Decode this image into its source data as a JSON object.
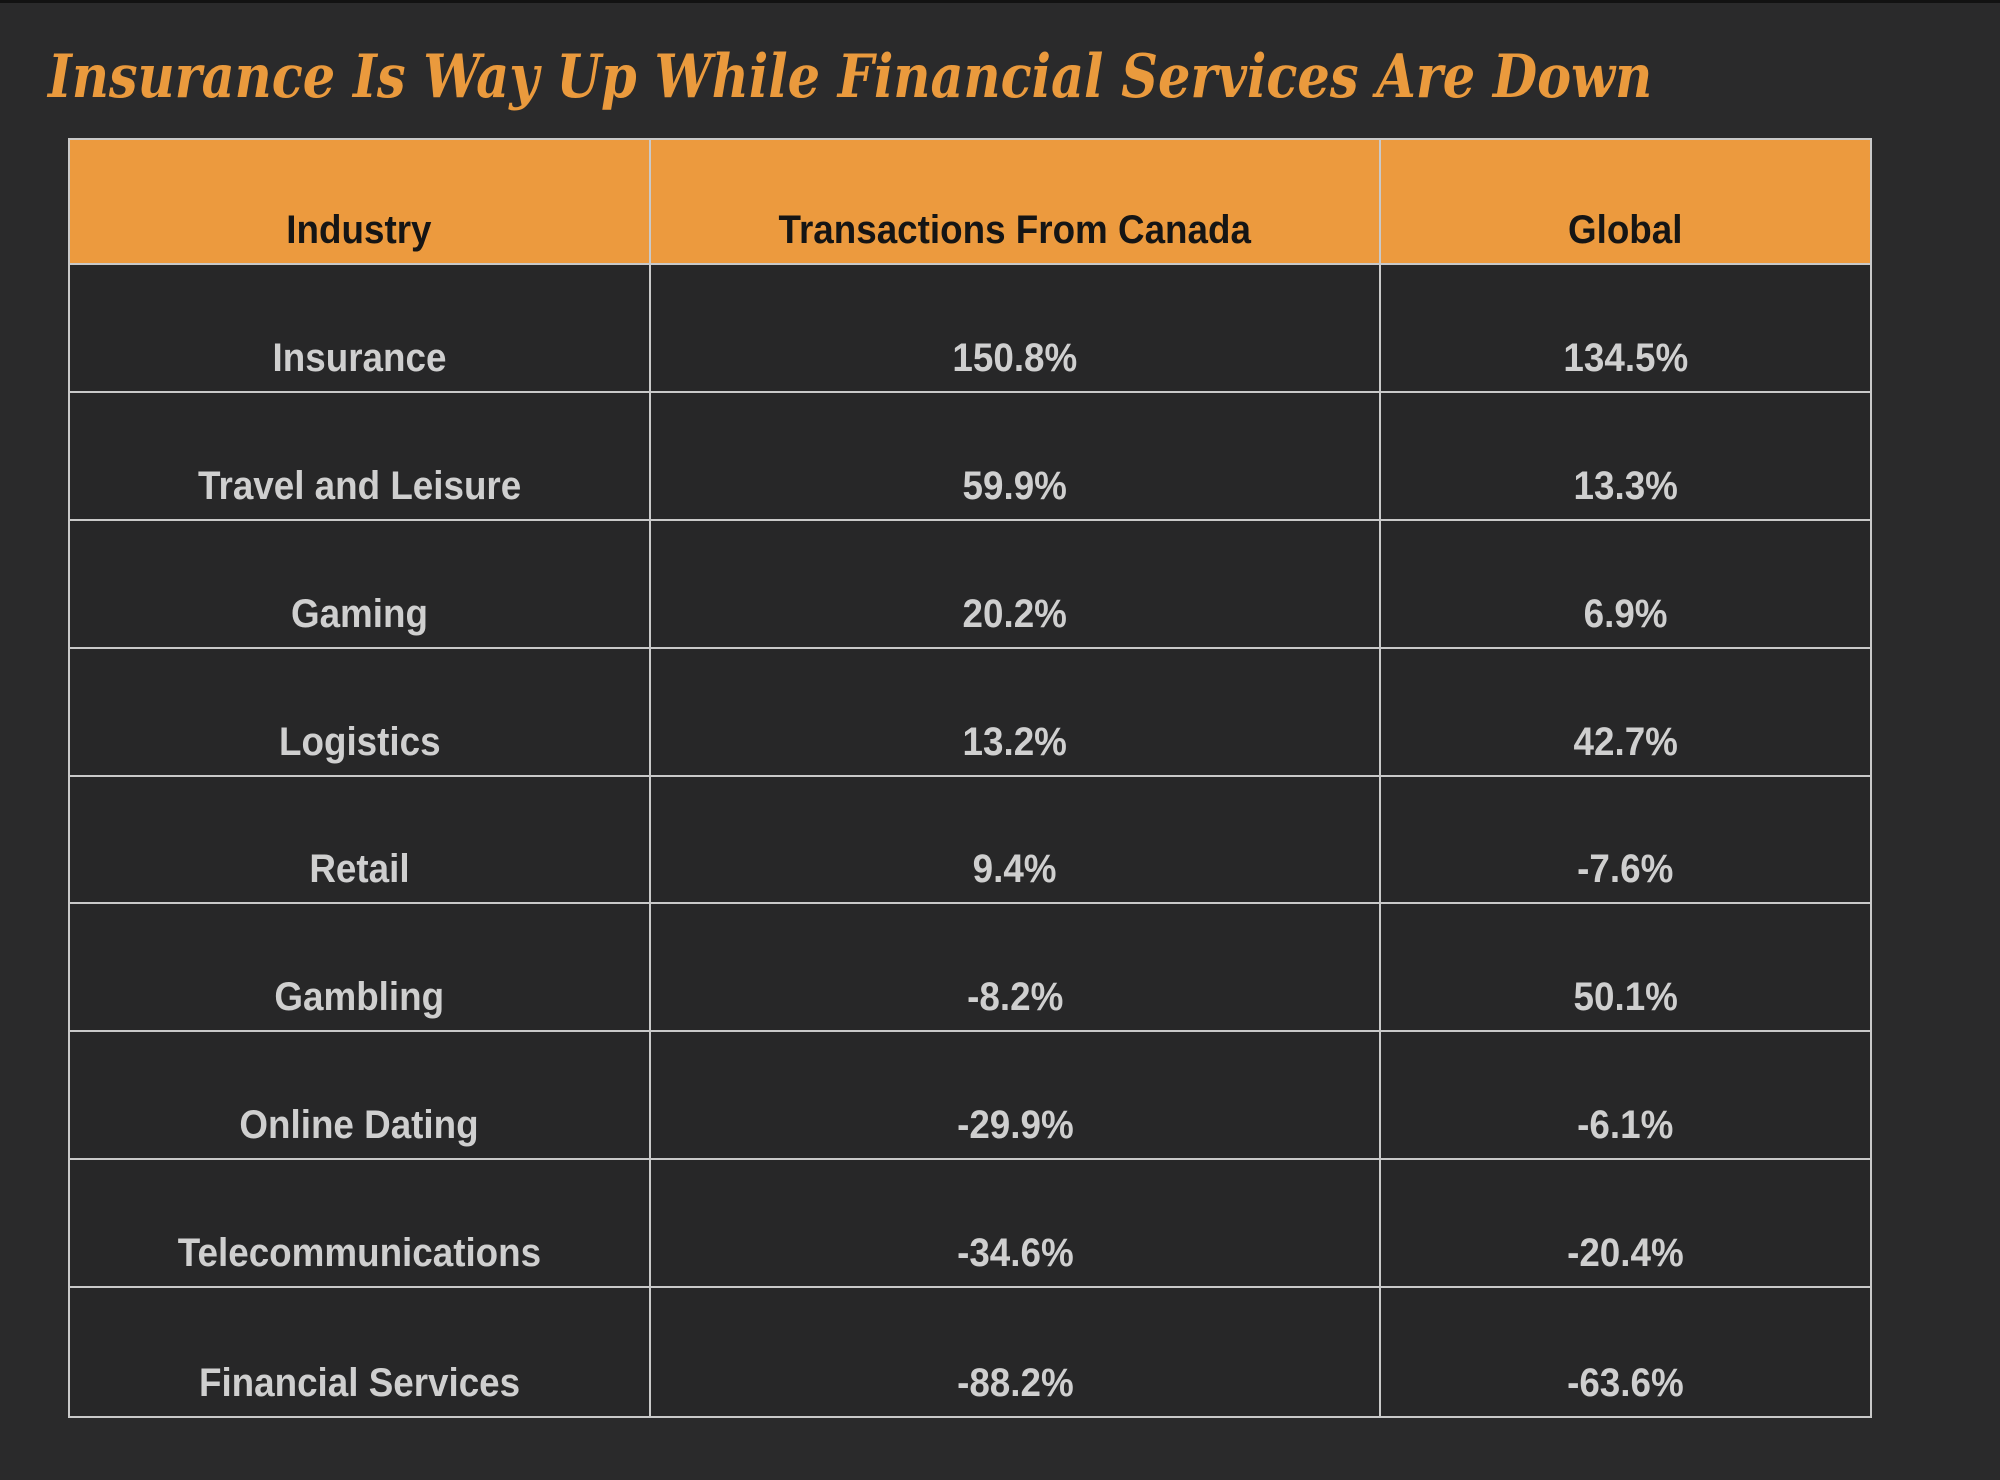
{
  "title": {
    "text": "Insurance Is Way Up While Financial Services Are Down"
  },
  "table": {
    "columns": [
      "Industry",
      "Transactions From Canada",
      "Global"
    ],
    "rows": [
      {
        "industry": "Insurance",
        "canada": "150.8%",
        "global": "134.5%"
      },
      {
        "industry": "Travel and Leisure",
        "canada": "59.9%",
        "global": "13.3%"
      },
      {
        "industry": "Gaming",
        "canada": "20.2%",
        "global": "6.9%"
      },
      {
        "industry": "Logistics",
        "canada": "13.2%",
        "global": "42.7%"
      },
      {
        "industry": "Retail",
        "canada": "9.4%",
        "global": "-7.6%"
      },
      {
        "industry": "Gambling",
        "canada": "-8.2%",
        "global": "50.1%"
      },
      {
        "industry": "Online Dating",
        "canada": "-29.9%",
        "global": "-6.1%"
      },
      {
        "industry": "Telecommunications",
        "canada": "-34.6%",
        "global": "-20.4%"
      },
      {
        "industry": "Financial Services",
        "canada": "-88.2%",
        "global": "-63.6%"
      }
    ]
  },
  "colors": {
    "background": "#2a2a2b",
    "header_orange": "#ec9a3e",
    "title_orange": "#ea9a3d",
    "cell_text": "#cfcfcf",
    "header_text": "#151515",
    "grid_line": "#c9c9c9"
  },
  "chart_data": {
    "type": "table",
    "title": "Insurance Is Way Up While Financial Services Are Down",
    "columns": [
      "Industry",
      "Transactions From Canada",
      "Global"
    ],
    "categories": [
      "Insurance",
      "Travel and Leisure",
      "Gaming",
      "Logistics",
      "Retail",
      "Gambling",
      "Online Dating",
      "Telecommunications",
      "Financial Services"
    ],
    "series": [
      {
        "name": "Transactions From Canada",
        "values": [
          150.8,
          59.9,
          20.2,
          13.2,
          9.4,
          -8.2,
          -29.9,
          -34.6,
          -88.2
        ],
        "unit": "%"
      },
      {
        "name": "Global",
        "values": [
          134.5,
          13.3,
          6.9,
          42.7,
          -7.6,
          50.1,
          -6.1,
          -20.4,
          -63.6
        ],
        "unit": "%"
      }
    ],
    "layout": {
      "header_bg": "#ec9a3e",
      "body_bg": "#272728",
      "grid": true,
      "text_align": "center"
    }
  }
}
